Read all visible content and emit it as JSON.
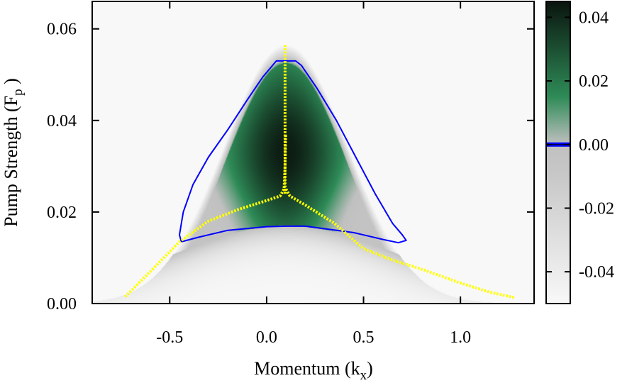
{
  "chart_data": {
    "type": "heatmap",
    "title": "",
    "xlabel": {
      "main": "Momentum (k",
      "sub": "x",
      "close": ")"
    },
    "ylabel": {
      "main": "Pump Strength (F",
      "sub": "p",
      "close": " )"
    },
    "xlim": [
      -0.9,
      1.38
    ],
    "ylim": [
      0.0,
      0.066
    ],
    "x_ticks": [
      {
        "value": -0.5,
        "label": "-0.5"
      },
      {
        "value": 0.0,
        "label": "0.0"
      },
      {
        "value": 0.5,
        "label": "0.5"
      },
      {
        "value": 1.0,
        "label": "1.0"
      }
    ],
    "y_ticks": [
      {
        "value": 0.0,
        "label": "0.00"
      },
      {
        "value": 0.02,
        "label": "0.02"
      },
      {
        "value": 0.04,
        "label": "0.04"
      },
      {
        "value": 0.06,
        "label": "0.06"
      }
    ],
    "colorbar": {
      "range": [
        -0.05,
        0.045
      ],
      "ticks": [
        {
          "value": 0.04,
          "label": "0.04"
        },
        {
          "value": 0.02,
          "label": "0.02"
        },
        {
          "value": 0.0,
          "label": "0.00"
        },
        {
          "value": -0.02,
          "label": "-0.02"
        },
        {
          "value": -0.04,
          "label": "-0.04"
        }
      ],
      "zero_marker_color": "#0000ff",
      "stops": [
        {
          "value": -0.05,
          "color": "#f8f8f8"
        },
        {
          "value": -0.01,
          "color": "#c8c8c8"
        },
        {
          "value": 0.0,
          "color": "#c0c0c0"
        },
        {
          "value": 0.015,
          "color": "#2e8b57"
        },
        {
          "value": 0.045,
          "color": "#0a140e"
        }
      ]
    },
    "heatmap": {
      "background_value": -0.05,
      "peak_value": 0.043,
      "peak_location": [
        0.1,
        0.033
      ]
    },
    "series": [
      {
        "color": "#0000ff",
        "style": "zero-contour",
        "points": [
          [
            -0.44,
            0.0135
          ],
          [
            -0.45,
            0.015
          ],
          [
            -0.43,
            0.02
          ],
          [
            -0.38,
            0.026
          ],
          [
            -0.3,
            0.032
          ],
          [
            -0.2,
            0.038
          ],
          [
            -0.1,
            0.0445
          ],
          [
            -0.02,
            0.0495
          ],
          [
            0.03,
            0.052
          ],
          [
            0.05,
            0.053
          ],
          [
            0.15,
            0.053
          ],
          [
            0.18,
            0.052
          ],
          [
            0.26,
            0.047
          ],
          [
            0.36,
            0.04
          ],
          [
            0.46,
            0.032
          ],
          [
            0.56,
            0.024
          ],
          [
            0.65,
            0.0175
          ],
          [
            0.7,
            0.015
          ],
          [
            0.72,
            0.0138
          ],
          [
            0.68,
            0.0133
          ],
          [
            0.6,
            0.014
          ],
          [
            0.45,
            0.0155
          ],
          [
            0.2,
            0.0169
          ],
          [
            0.1,
            0.0169
          ],
          [
            0.0,
            0.0168
          ],
          [
            -0.2,
            0.016
          ],
          [
            -0.35,
            0.0145
          ],
          [
            -0.44,
            0.0135
          ]
        ]
      },
      {
        "color": "#ffff00",
        "style": "dotted-branch",
        "points": [
          [
            -0.73,
            0.0015
          ],
          [
            -0.6,
            0.007
          ],
          [
            -0.45,
            0.0135
          ],
          [
            -0.3,
            0.018
          ],
          [
            -0.15,
            0.0205
          ],
          [
            0.0,
            0.0225
          ],
          [
            0.07,
            0.0235
          ],
          [
            0.09,
            0.025
          ],
          [
            0.095,
            0.03
          ],
          [
            0.098,
            0.037
          ]
        ]
      },
      {
        "color": "#ffff00",
        "style": "dotted-branch",
        "points": [
          [
            0.1,
            0.025
          ],
          [
            0.12,
            0.0235
          ],
          [
            0.2,
            0.0215
          ],
          [
            0.35,
            0.0175
          ],
          [
            0.5,
            0.012
          ],
          [
            0.65,
            0.0095
          ],
          [
            0.8,
            0.0075
          ],
          [
            1.0,
            0.0045
          ],
          [
            1.15,
            0.0025
          ],
          [
            1.28,
            0.0013
          ]
        ]
      },
      {
        "color": "#ffff00",
        "style": "dotted-branch",
        "points": [
          [
            0.095,
            0.024
          ],
          [
            0.095,
            0.03
          ],
          [
            0.095,
            0.04
          ],
          [
            0.095,
            0.05
          ],
          [
            0.095,
            0.0565
          ]
        ]
      }
    ]
  }
}
